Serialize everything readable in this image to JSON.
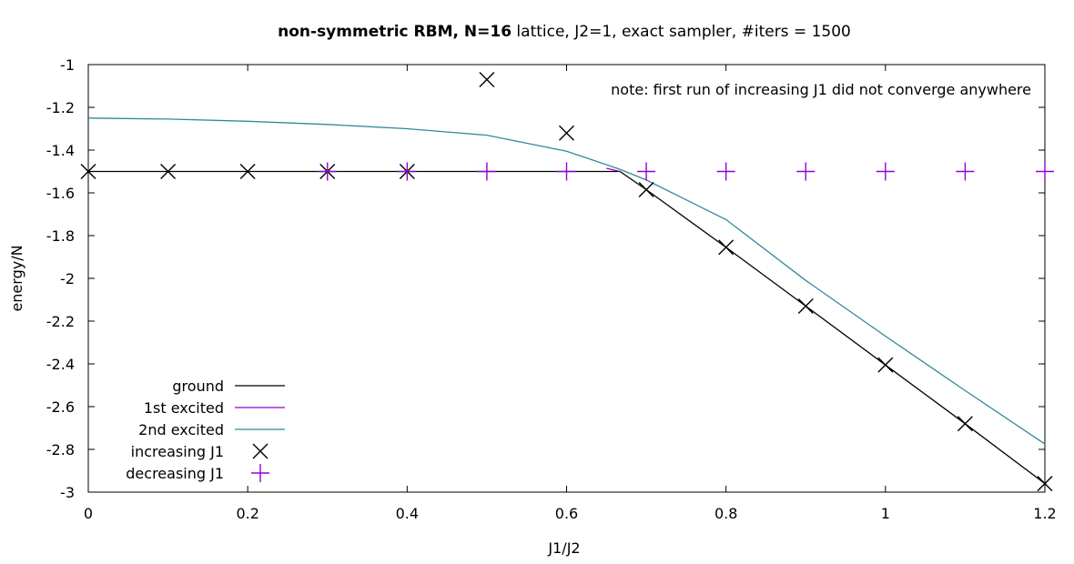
{
  "chart_data": {
    "type": "line",
    "title_bold": "non-symmetric RBM, N=16",
    "title_rest": " lattice, J2=1, exact sampler, #iters = 1500",
    "xlabel": "J1/J2",
    "ylabel": "energy/N",
    "xlim": [
      0,
      1.2
    ],
    "ylim": [
      -3,
      -1
    ],
    "xticks": [
      0,
      0.2,
      0.4,
      0.6,
      0.8,
      1,
      1.2
    ],
    "yticks": [
      -1,
      -1.2,
      -1.4,
      -1.6,
      -1.8,
      -2,
      -2.2,
      -2.4,
      -2.6,
      -2.8,
      -3
    ],
    "annotation": "note: first run of increasing J1 did not converge anywhere",
    "legend_position": "bottom-left",
    "grid": false,
    "series": [
      {
        "name": "ground",
        "kind": "line",
        "color": "#000000",
        "x": [
          0,
          0.1,
          0.2,
          0.3,
          0.4,
          0.5,
          0.6,
          0.667,
          0.7,
          0.8,
          0.9,
          1.0,
          1.1,
          1.2
        ],
        "y": [
          -1.5,
          -1.5,
          -1.5,
          -1.5,
          -1.5,
          -1.5,
          -1.5,
          -1.5,
          -1.585,
          -1.855,
          -2.13,
          -2.405,
          -2.68,
          -2.96
        ]
      },
      {
        "name": "1st excited",
        "kind": "line",
        "color": "#9400d3",
        "x": [
          0.65,
          0.667
        ],
        "y": [
          -1.485,
          -1.5
        ]
      },
      {
        "name": "2nd excited",
        "kind": "line",
        "color": "#2f8a9a",
        "x": [
          0,
          0.1,
          0.2,
          0.3,
          0.4,
          0.5,
          0.6,
          0.667,
          0.7,
          0.8,
          0.9,
          1.0,
          1.1,
          1.2
        ],
        "y": [
          -1.25,
          -1.255,
          -1.265,
          -1.28,
          -1.3,
          -1.33,
          -1.405,
          -1.49,
          -1.54,
          -1.725,
          -2.01,
          -2.27,
          -2.525,
          -2.775
        ]
      },
      {
        "name": "increasing J1",
        "kind": "points",
        "marker": "x",
        "color": "#000000",
        "x": [
          0,
          0.1,
          0.2,
          0.3,
          0.4,
          0.5,
          0.6,
          0.7,
          0.8,
          0.9,
          1.0,
          1.1,
          1.2
        ],
        "y": [
          -1.5,
          -1.5,
          -1.5,
          -1.5,
          -1.5,
          -1.07,
          -1.32,
          -1.585,
          -1.855,
          -2.13,
          -2.405,
          -2.68,
          -2.96
        ]
      },
      {
        "name": "decreasing J1",
        "kind": "points",
        "marker": "plus",
        "color": "#9400d3",
        "x": [
          0.3,
          0.4,
          0.5,
          0.6,
          0.7,
          0.8,
          0.9,
          1.0,
          1.1,
          1.2
        ],
        "y": [
          -1.5,
          -1.5,
          -1.5,
          -1.5,
          -1.5,
          -1.5,
          -1.5,
          -1.5,
          -1.5,
          -1.5
        ]
      }
    ]
  }
}
